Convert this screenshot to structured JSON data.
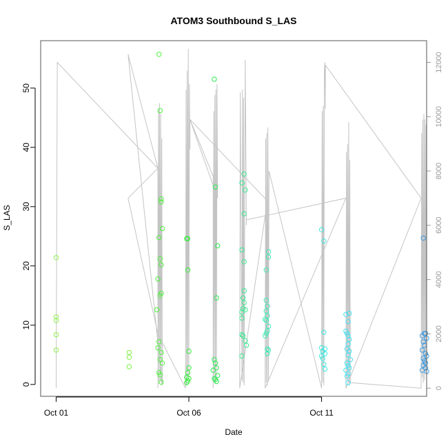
{
  "chart_data": {
    "type": "scatter",
    "title": "ATOM3 Southbound S_LAS",
    "xlabel": "Date",
    "ylabel": "S_LAS",
    "x_unit": "date",
    "xlim": [
      "2023-09-30T10:00",
      "2023-10-14T23:00"
    ],
    "x_ticks": [
      {
        "value": "2023-10-01T00:00",
        "label": "Oct 01"
      },
      {
        "value": "2023-10-06T00:00",
        "label": "Oct 06"
      },
      {
        "value": "2023-10-11T00:00",
        "label": "Oct 11"
      }
    ],
    "ylim": [
      -2,
      58
    ],
    "y_ticks": [
      0,
      10,
      20,
      30,
      40,
      50
    ],
    "y2lim": [
      -300,
      12800
    ],
    "y2_ticks": [
      0,
      2000,
      4000,
      6000,
      8000,
      10000,
      12000
    ],
    "grid": false,
    "legend": "none",
    "colors": {
      "line": "#c4c4c4",
      "box": "#555555",
      "right_axis": "#9a9a9a"
    },
    "points": [
      {
        "x": "2023-10-01T00:00",
        "y": 21.4,
        "color": "#8cf24a"
      },
      {
        "x": "2023-10-01T00:00",
        "y": 11.4,
        "color": "#8cf24a"
      },
      {
        "x": "2023-10-01T00:00",
        "y": 10.8,
        "color": "#8cf24a"
      },
      {
        "x": "2023-10-01T00:00",
        "y": 8.4,
        "color": "#8cf24a"
      },
      {
        "x": "2023-10-01T00:00",
        "y": 5.8,
        "color": "#8cf24a"
      },
      {
        "x": "2023-10-03T18:00",
        "y": 5.4,
        "color": "#7cf240"
      },
      {
        "x": "2023-10-03T18:00",
        "y": 4.6,
        "color": "#7cf240"
      },
      {
        "x": "2023-10-03T18:00",
        "y": 3.0,
        "color": "#7cf240"
      },
      {
        "x": "2023-10-04T21:00",
        "y": 55.7,
        "color": "#4cf03a"
      },
      {
        "x": "2023-10-04T22:00",
        "y": 46.2,
        "color": "#4cf03a"
      },
      {
        "x": "2023-10-04T23:00",
        "y": 31.3,
        "color": "#4cf03a"
      },
      {
        "x": "2023-10-04T23:00",
        "y": 30.8,
        "color": "#4cf03a"
      },
      {
        "x": "2023-10-05T00:00",
        "y": 26.3,
        "color": "#4cf03a"
      },
      {
        "x": "2023-10-04T21:00",
        "y": 24.8,
        "color": "#4cf03a"
      },
      {
        "x": "2023-10-04T22:00",
        "y": 21.2,
        "color": "#4cf03a"
      },
      {
        "x": "2023-10-04T23:00",
        "y": 20.2,
        "color": "#4cf03a"
      },
      {
        "x": "2023-10-04T20:00",
        "y": 17.8,
        "color": "#4cf03a"
      },
      {
        "x": "2023-10-04T23:00",
        "y": 15.4,
        "color": "#4cf03a"
      },
      {
        "x": "2023-10-04T22:00",
        "y": 15.0,
        "color": "#4cf03a"
      },
      {
        "x": "2023-10-04T19:00",
        "y": 12.6,
        "color": "#4cf03a"
      },
      {
        "x": "2023-10-04T21:00",
        "y": 7.2,
        "color": "#4cf03a"
      },
      {
        "x": "2023-10-04T20:00",
        "y": 6.2,
        "color": "#4cf03a"
      },
      {
        "x": "2023-10-04T23:00",
        "y": 5.4,
        "color": "#4cf03a"
      },
      {
        "x": "2023-10-04T22:00",
        "y": 4.2,
        "color": "#4cf03a"
      },
      {
        "x": "2023-10-05T00:00",
        "y": 3.6,
        "color": "#4cf03a"
      },
      {
        "x": "2023-10-04T21:00",
        "y": 2.0,
        "color": "#4cf03a"
      },
      {
        "x": "2023-10-04T22:00",
        "y": 1.6,
        "color": "#4cf03a"
      },
      {
        "x": "2023-10-04T23:00",
        "y": 0.4,
        "color": "#4cf03a"
      },
      {
        "x": "2023-10-05T22:00",
        "y": 24.6,
        "color": "#34ec3a"
      },
      {
        "x": "2023-10-05T23:00",
        "y": 24.6,
        "color": "#34ec3a"
      },
      {
        "x": "2023-10-05T23:00",
        "y": 19.3,
        "color": "#34ec3a"
      },
      {
        "x": "2023-10-06T00:00",
        "y": 5.6,
        "color": "#34ec3a"
      },
      {
        "x": "2023-10-06T00:00",
        "y": 2.8,
        "color": "#34ec3a"
      },
      {
        "x": "2023-10-05T23:00",
        "y": 2.0,
        "color": "#34ec3a"
      },
      {
        "x": "2023-10-05T22:00",
        "y": 1.2,
        "color": "#34ec3a"
      },
      {
        "x": "2023-10-06T00:00",
        "y": 1.0,
        "color": "#34ec3a"
      },
      {
        "x": "2023-10-05T23:00",
        "y": 0.6,
        "color": "#34ec3a"
      },
      {
        "x": "2023-10-05T22:00",
        "y": 0.3,
        "color": "#34ec3a"
      },
      {
        "x": "2023-10-06T23:00",
        "y": 51.5,
        "color": "#2aea50"
      },
      {
        "x": "2023-10-07T00:00",
        "y": 33.3,
        "color": "#2aea50"
      },
      {
        "x": "2023-10-07T02:00",
        "y": 23.4,
        "color": "#2aea50"
      },
      {
        "x": "2023-10-07T01:00",
        "y": 14.6,
        "color": "#2aea50"
      },
      {
        "x": "2023-10-06T23:00",
        "y": 4.2,
        "color": "#2aea50"
      },
      {
        "x": "2023-10-07T00:00",
        "y": 3.6,
        "color": "#2aea50"
      },
      {
        "x": "2023-10-06T22:00",
        "y": 2.4,
        "color": "#2aea50"
      },
      {
        "x": "2023-10-07T01:00",
        "y": 2.8,
        "color": "#2aea50"
      },
      {
        "x": "2023-10-07T02:00",
        "y": 1.5,
        "color": "#2aea50"
      },
      {
        "x": "2023-10-06T23:00",
        "y": 1.0,
        "color": "#2aea50"
      },
      {
        "x": "2023-10-07T00:00",
        "y": 0.8,
        "color": "#2aea50"
      },
      {
        "x": "2023-10-07T01:00",
        "y": 0.5,
        "color": "#2aea50"
      },
      {
        "x": "2023-10-08T02:00",
        "y": 35.5,
        "color": "#36ea90"
      },
      {
        "x": "2023-10-08T00:00",
        "y": 34.0,
        "color": "#36ea90"
      },
      {
        "x": "2023-10-08T03:00",
        "y": 32.8,
        "color": "#36ea90"
      },
      {
        "x": "2023-10-08T02:00",
        "y": 28.8,
        "color": "#36ea90"
      },
      {
        "x": "2023-10-08T00:00",
        "y": 22.7,
        "color": "#36ea90"
      },
      {
        "x": "2023-10-08T02:00",
        "y": 20.7,
        "color": "#36ea90"
      },
      {
        "x": "2023-10-08T02:00",
        "y": 15.8,
        "color": "#36ea90"
      },
      {
        "x": "2023-10-08T01:00",
        "y": 14.6,
        "color": "#36ea90"
      },
      {
        "x": "2023-10-08T02:00",
        "y": 13.8,
        "color": "#36ea90"
      },
      {
        "x": "2023-10-08T01:00",
        "y": 12.8,
        "color": "#36ea90"
      },
      {
        "x": "2023-10-08T00:00",
        "y": 12.2,
        "color": "#36ea90"
      },
      {
        "x": "2023-10-08T00:00",
        "y": 11.2,
        "color": "#36ea90"
      },
      {
        "x": "2023-10-08T03:00",
        "y": 12.6,
        "color": "#36ea90"
      },
      {
        "x": "2023-10-08T01:00",
        "y": 8.2,
        "color": "#36ea90"
      },
      {
        "x": "2023-10-08T00:00",
        "y": 8.4,
        "color": "#36ea90"
      },
      {
        "x": "2023-10-08T03:00",
        "y": 7.4,
        "color": "#36ea90"
      },
      {
        "x": "2023-10-08T04:00",
        "y": 6.6,
        "color": "#36ea90"
      },
      {
        "x": "2023-10-08T00:00",
        "y": 4.8,
        "color": "#36ea90"
      },
      {
        "x": "2023-10-09T00:00",
        "y": 22.4,
        "color": "#3ceab4"
      },
      {
        "x": "2023-10-09T00:00",
        "y": 21.5,
        "color": "#3ceab4"
      },
      {
        "x": "2023-10-08T22:00",
        "y": 19.3,
        "color": "#3ceab4"
      },
      {
        "x": "2023-10-08T22:00",
        "y": 14.2,
        "color": "#3ceab4"
      },
      {
        "x": "2023-10-08T23:00",
        "y": 13.2,
        "color": "#3ceab4"
      },
      {
        "x": "2023-10-08T22:00",
        "y": 12.4,
        "color": "#3ceab4"
      },
      {
        "x": "2023-10-08T23:00",
        "y": 11.6,
        "color": "#3ceab4"
      },
      {
        "x": "2023-10-08T21:00",
        "y": 11.0,
        "color": "#3ceab4"
      },
      {
        "x": "2023-10-08T22:00",
        "y": 10.8,
        "color": "#3ceab4"
      },
      {
        "x": "2023-10-09T00:00",
        "y": 9.8,
        "color": "#3ceab4"
      },
      {
        "x": "2023-10-08T23:00",
        "y": 9.0,
        "color": "#3ceab4"
      },
      {
        "x": "2023-10-08T22:00",
        "y": 8.6,
        "color": "#3ceab4"
      },
      {
        "x": "2023-10-08T21:00",
        "y": 8.2,
        "color": "#3ceab4"
      },
      {
        "x": "2023-10-08T23:00",
        "y": 6.0,
        "color": "#3ceab4"
      },
      {
        "x": "2023-10-09T00:00",
        "y": 5.8,
        "color": "#3ceab4"
      },
      {
        "x": "2023-10-08T23:00",
        "y": 5.2,
        "color": "#3ceab4"
      },
      {
        "x": "2023-10-11T00:00",
        "y": 26.1,
        "color": "#3ce8e0"
      },
      {
        "x": "2023-10-11T02:00",
        "y": 24.2,
        "color": "#3ce8e0"
      },
      {
        "x": "2023-10-11T02:00",
        "y": 8.8,
        "color": "#3ce8e0"
      },
      {
        "x": "2023-10-11T00:00",
        "y": 6.2,
        "color": "#3ce8e0"
      },
      {
        "x": "2023-10-11T03:00",
        "y": 6.0,
        "color": "#3ce8e0"
      },
      {
        "x": "2023-10-11T01:00",
        "y": 5.6,
        "color": "#3ce8e0"
      },
      {
        "x": "2023-10-11T03:00",
        "y": 5.2,
        "color": "#3ce8e0"
      },
      {
        "x": "2023-10-11T01:00",
        "y": 4.4,
        "color": "#3ce8e0"
      },
      {
        "x": "2023-10-11T00:00",
        "y": 4.8,
        "color": "#3ce8e0"
      },
      {
        "x": "2023-10-11T02:00",
        "y": 3.4,
        "color": "#3ce8e0"
      },
      {
        "x": "2023-10-11T03:00",
        "y": 2.6,
        "color": "#3ce8e0"
      },
      {
        "x": "2023-10-11T22:00",
        "y": 11.8,
        "color": "#44e0f0"
      },
      {
        "x": "2023-10-12T01:00",
        "y": 12.0,
        "color": "#44e0f0"
      },
      {
        "x": "2023-10-12T00:00",
        "y": 10.6,
        "color": "#44e0f0"
      },
      {
        "x": "2023-10-11T22:00",
        "y": 9.0,
        "color": "#44e0f0"
      },
      {
        "x": "2023-10-11T23:00",
        "y": 8.6,
        "color": "#44e0f0"
      },
      {
        "x": "2023-10-12T00:00",
        "y": 8.2,
        "color": "#44e0f0"
      },
      {
        "x": "2023-10-12T01:00",
        "y": 7.6,
        "color": "#44e0f0"
      },
      {
        "x": "2023-10-12T00:00",
        "y": 6.8,
        "color": "#44e0f0"
      },
      {
        "x": "2023-10-11T23:00",
        "y": 6.0,
        "color": "#44e0f0"
      },
      {
        "x": "2023-10-12T01:00",
        "y": 5.6,
        "color": "#44e0f0"
      },
      {
        "x": "2023-10-12T00:00",
        "y": 5.0,
        "color": "#44e0f0"
      },
      {
        "x": "2023-10-12T02:00",
        "y": 4.2,
        "color": "#44e0f0"
      },
      {
        "x": "2023-10-11T23:00",
        "y": 3.6,
        "color": "#44e0f0"
      },
      {
        "x": "2023-10-12T00:00",
        "y": 3.2,
        "color": "#44e0f0"
      },
      {
        "x": "2023-10-12T01:00",
        "y": 2.8,
        "color": "#44e0f0"
      },
      {
        "x": "2023-10-11T22:00",
        "y": 2.4,
        "color": "#44e0f0"
      },
      {
        "x": "2023-10-12T00:00",
        "y": 1.8,
        "color": "#44e0f0"
      },
      {
        "x": "2023-10-11T23:00",
        "y": 1.4,
        "color": "#44e0f0"
      },
      {
        "x": "2023-10-12T00:00",
        "y": 0.3,
        "color": "#44e0f0"
      },
      {
        "x": "2023-10-14T20:00",
        "y": 24.7,
        "color": "#3c9ae0"
      },
      {
        "x": "2023-10-14T22:00",
        "y": 8.6,
        "color": "#3c9ae0"
      },
      {
        "x": "2023-10-14T21:00",
        "y": 8.6,
        "color": "#3c9ae0"
      },
      {
        "x": "2023-10-14T19:00",
        "y": 8.2,
        "color": "#3c9ae0"
      },
      {
        "x": "2023-10-14T23:00",
        "y": 7.8,
        "color": "#3c9ae0"
      },
      {
        "x": "2023-10-14T20:00",
        "y": 7.2,
        "color": "#3c9ae0"
      },
      {
        "x": "2023-10-14T21:00",
        "y": 6.6,
        "color": "#3c9ae0"
      },
      {
        "x": "2023-10-14T19:00",
        "y": 5.8,
        "color": "#3c9ae0"
      },
      {
        "x": "2023-10-14T22:00",
        "y": 5.2,
        "color": "#3c9ae0"
      },
      {
        "x": "2023-10-14T23:00",
        "y": 4.8,
        "color": "#3c9ae0"
      },
      {
        "x": "2023-10-14T20:00",
        "y": 4.4,
        "color": "#3c9ae0"
      },
      {
        "x": "2023-10-14T21:00",
        "y": 4.0,
        "color": "#3c9ae0"
      },
      {
        "x": "2023-10-14T22:00",
        "y": 3.6,
        "color": "#3c9ae0"
      },
      {
        "x": "2023-10-14T20:00",
        "y": 3.2,
        "color": "#3c9ae0"
      },
      {
        "x": "2023-10-14T22:00",
        "y": 2.8,
        "color": "#3c9ae0"
      },
      {
        "x": "2023-10-14T19:00",
        "y": 2.4,
        "color": "#3c9ae0"
      },
      {
        "x": "2023-10-14T23:00",
        "y": 2.2,
        "color": "#3c9ae0"
      }
    ],
    "line_series": {
      "axis": "right",
      "points": [
        [
          "2023-10-01T00:00",
          0
        ],
        [
          "2023-10-01T01:00",
          12000
        ],
        [
          "2023-10-04T20:00",
          8100
        ],
        [
          "2023-10-04T20:00",
          0
        ],
        [
          "2023-10-04T20:30",
          10300
        ],
        [
          "2023-10-04T21:00",
          150
        ],
        [
          "2023-10-04T21:30",
          10500
        ],
        [
          "2023-10-04T22:00",
          300
        ],
        [
          "2023-10-04T22:30",
          10100
        ],
        [
          "2023-10-04T23:00",
          200
        ],
        [
          "2023-10-04T23:30",
          9200
        ],
        [
          "2023-10-05T00:00",
          100
        ],
        [
          "2023-10-03T17:00",
          12300
        ],
        [
          "2023-10-04T20:00",
          8100
        ],
        [
          "2023-10-03T17:00",
          7000
        ],
        [
          "2023-10-04T20:00",
          2000
        ],
        [
          "2023-10-05T21:00",
          0
        ],
        [
          "2023-10-05T21:30",
          11000
        ],
        [
          "2023-10-05T22:00",
          100
        ],
        [
          "2023-10-05T22:30",
          11700
        ],
        [
          "2023-10-05T23:00",
          500
        ],
        [
          "2023-10-05T23:30",
          12500
        ],
        [
          "2023-10-06T00:00",
          300
        ],
        [
          "2023-10-06T00:30",
          11200
        ],
        [
          "2023-10-06T01:00",
          8800
        ],
        [
          "2023-10-06T01:00",
          9900
        ],
        [
          "2023-10-06T22:00",
          7800
        ],
        [
          "2023-10-06T22:00",
          0
        ],
        [
          "2023-10-06T22:30",
          10200
        ],
        [
          "2023-10-06T23:00",
          300
        ],
        [
          "2023-10-06T23:30",
          10800
        ],
        [
          "2023-10-07T00:00",
          200
        ],
        [
          "2023-10-07T00:30",
          11000
        ],
        [
          "2023-10-07T01:00",
          400
        ],
        [
          "2023-10-07T01:30",
          11200
        ],
        [
          "2023-10-07T02:00",
          7000
        ],
        [
          "2023-10-06T01:00",
          9900
        ],
        [
          "2023-10-08T23:00",
          6900
        ],
        [
          "2023-10-07T22:00",
          0
        ],
        [
          "2023-10-07T22:30",
          10900
        ],
        [
          "2023-10-08T00:00",
          300
        ],
        [
          "2023-10-08T00:30",
          11000
        ],
        [
          "2023-10-08T01:00",
          200
        ],
        [
          "2023-10-08T01:30",
          10700
        ],
        [
          "2023-10-08T02:00",
          100
        ],
        [
          "2023-10-08T03:00",
          12100
        ],
        [
          "2023-10-08T04:00",
          6000
        ],
        [
          "2023-10-08T04:00",
          6200
        ],
        [
          "2023-10-11T22:00",
          7000
        ],
        [
          "2023-10-08T21:00",
          0
        ],
        [
          "2023-10-08T21:30",
          9200
        ],
        [
          "2023-10-08T22:00",
          200
        ],
        [
          "2023-10-08T22:30",
          9400
        ],
        [
          "2023-10-08T23:00",
          100
        ],
        [
          "2023-10-08T23:30",
          9600
        ],
        [
          "2023-10-09T00:00",
          300
        ],
        [
          "2023-10-09T00:30",
          8000
        ],
        [
          "2023-10-11T00:00",
          0
        ],
        [
          "2023-10-11T00:30",
          10200
        ],
        [
          "2023-10-11T01:00",
          200
        ],
        [
          "2023-10-11T01:30",
          10400
        ],
        [
          "2023-10-11T02:00",
          100
        ],
        [
          "2023-10-11T02:30",
          11700
        ],
        [
          "2023-10-11T03:00",
          12000
        ],
        [
          "2023-10-11T03:30",
          10300
        ],
        [
          "2023-10-11T03:30",
          11900
        ],
        [
          "2023-10-14T18:00",
          7000
        ],
        [
          "2023-10-11T22:00",
          0
        ],
        [
          "2023-10-11T22:30",
          8700
        ],
        [
          "2023-10-11T23:00",
          300
        ],
        [
          "2023-10-11T23:30",
          9000
        ],
        [
          "2023-10-12T00:00",
          200
        ],
        [
          "2023-10-12T00:30",
          9800
        ],
        [
          "2023-10-12T01:00",
          100
        ],
        [
          "2023-10-12T01:30",
          8400
        ],
        [
          "2023-10-12T02:00",
          200
        ],
        [
          "2023-10-14T18:00",
          0
        ],
        [
          "2023-10-14T18:30",
          9400
        ],
        [
          "2023-10-14T19:00",
          400
        ],
        [
          "2023-10-14T19:30",
          9900
        ],
        [
          "2023-10-14T20:00",
          200
        ],
        [
          "2023-10-14T20:30",
          10100
        ],
        [
          "2023-10-14T21:00",
          300
        ],
        [
          "2023-10-14T21:30",
          9900
        ],
        [
          "2023-10-14T22:00",
          600
        ],
        [
          "2023-10-14T22:30",
          9700
        ],
        [
          "2023-10-14T23:00",
          300
        ]
      ]
    }
  }
}
